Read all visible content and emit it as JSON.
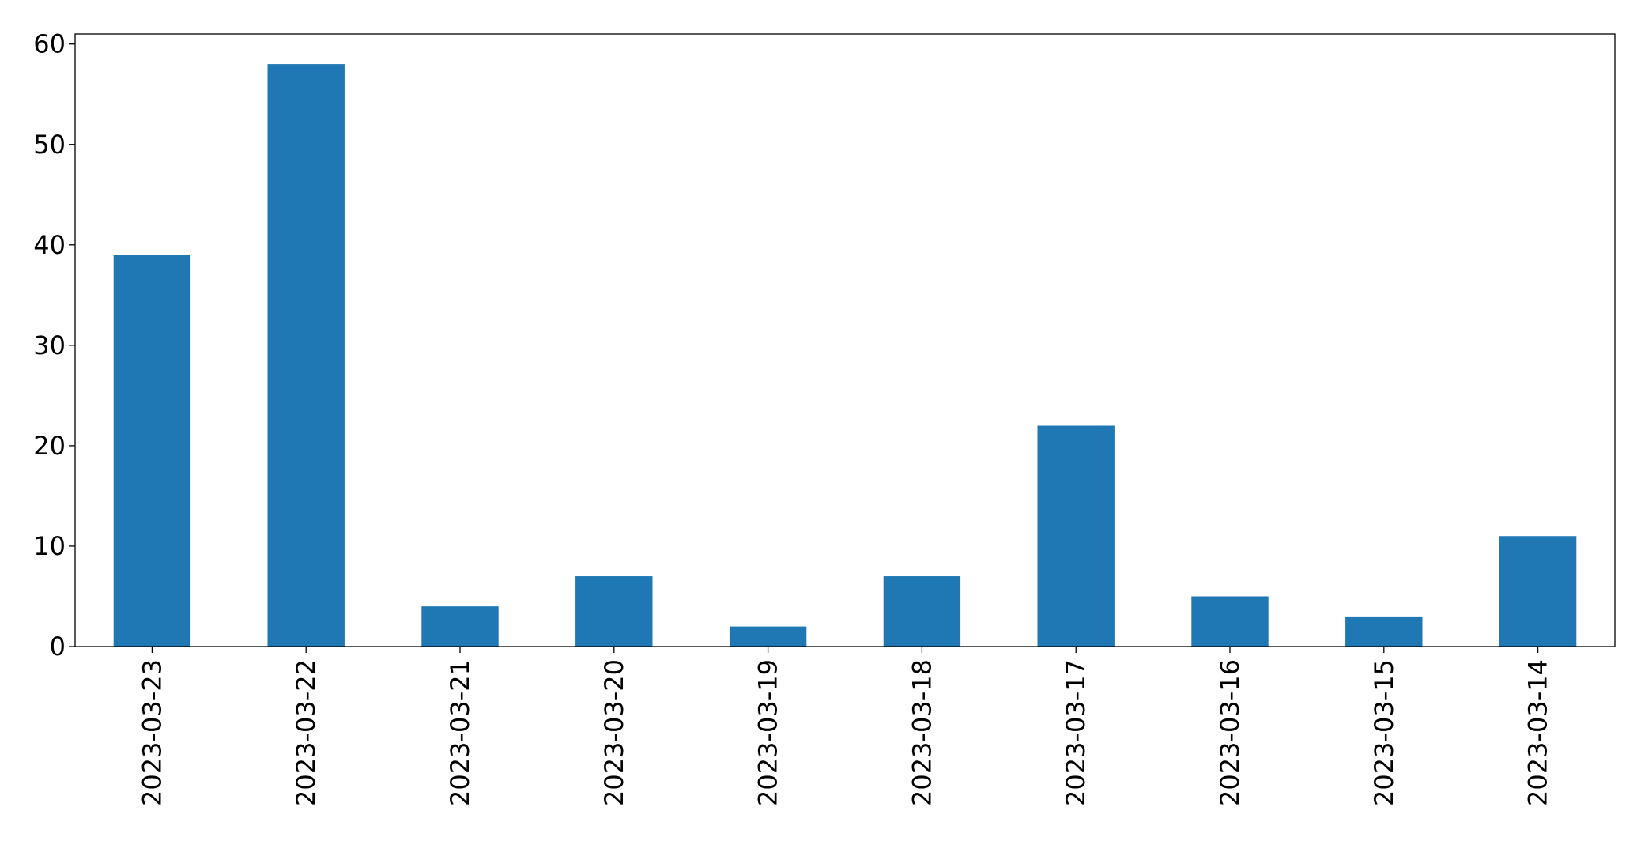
{
  "chart_data": {
    "type": "bar",
    "categories": [
      "2023-03-23",
      "2023-03-22",
      "2023-03-21",
      "2023-03-20",
      "2023-03-19",
      "2023-03-18",
      "2023-03-17",
      "2023-03-16",
      "2023-03-15",
      "2023-03-14"
    ],
    "values": [
      39,
      58,
      4,
      7,
      2,
      7,
      22,
      5,
      3,
      11
    ],
    "title": "",
    "xlabel": "",
    "ylabel": "",
    "ylim": [
      0,
      61
    ],
    "yticks": [
      0,
      10,
      20,
      30,
      40,
      50,
      60
    ],
    "bar_color": "#1f77b4",
    "grid": false,
    "legend": "none",
    "xtick_rotation": "vertical"
  }
}
